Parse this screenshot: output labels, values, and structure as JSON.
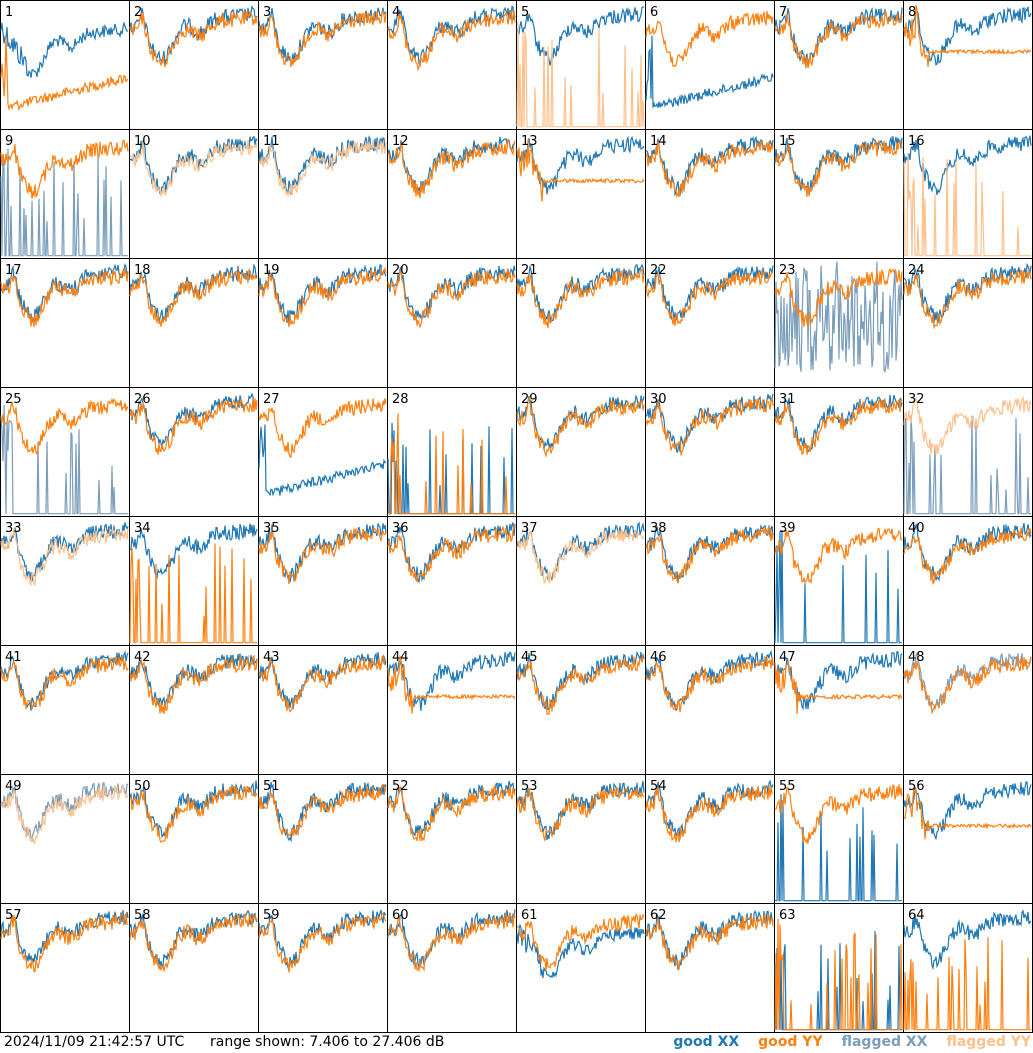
{
  "chart_data": {
    "type": "line",
    "grid": "8x8 small multiples",
    "range": [
      7.406,
      27.406
    ],
    "panels": [
      {
        "label": "1",
        "xx": "good",
        "yy": "good",
        "xxShape": "d",
        "yyShape": "x"
      },
      {
        "label": "2",
        "xx": "good",
        "yy": "good",
        "xxShape": "v",
        "yyShape": "v"
      },
      {
        "label": "3",
        "xx": "good",
        "yy": "good",
        "xxShape": "v",
        "yyShape": "v"
      },
      {
        "label": "4",
        "xx": "good",
        "yy": "good",
        "xxShape": "v",
        "yyShape": "v"
      },
      {
        "label": "5",
        "xx": "good",
        "yy": "flagged",
        "xxShape": "v",
        "yyShape": "s"
      },
      {
        "label": "6",
        "xx": "good",
        "yy": "good",
        "xxShape": "x",
        "yyShape": "v"
      },
      {
        "label": "7",
        "xx": "good",
        "yy": "good",
        "xxShape": "v",
        "yyShape": "v"
      },
      {
        "label": "8",
        "xx": "good",
        "yy": "good",
        "xxShape": "v",
        "yyShape": "f"
      },
      {
        "label": "9",
        "xx": "flagged",
        "yy": "good",
        "xxShape": "s",
        "yyShape": "v"
      },
      {
        "label": "10",
        "xx": "good",
        "yy": "flagged",
        "xxShape": "v",
        "yyShape": "v"
      },
      {
        "label": "11",
        "xx": "good",
        "yy": "flagged",
        "xxShape": "v",
        "yyShape": "v"
      },
      {
        "label": "12",
        "xx": "good",
        "yy": "good",
        "xxShape": "v",
        "yyShape": "v"
      },
      {
        "label": "13",
        "xx": "good",
        "yy": "good",
        "xxShape": "v",
        "yyShape": "f"
      },
      {
        "label": "14",
        "xx": "good",
        "yy": "good",
        "xxShape": "v",
        "yyShape": "v"
      },
      {
        "label": "15",
        "xx": "good",
        "yy": "good",
        "xxShape": "v",
        "yyShape": "v"
      },
      {
        "label": "16",
        "xx": "good",
        "yy": "flagged",
        "xxShape": "v",
        "yyShape": "s"
      },
      {
        "label": "17",
        "xx": "good",
        "yy": "good",
        "xxShape": "v",
        "yyShape": "v"
      },
      {
        "label": "18",
        "xx": "good",
        "yy": "good",
        "xxShape": "v",
        "yyShape": "v"
      },
      {
        "label": "19",
        "xx": "good",
        "yy": "good",
        "xxShape": "v",
        "yyShape": "v"
      },
      {
        "label": "20",
        "xx": "good",
        "yy": "good",
        "xxShape": "v",
        "yyShape": "v"
      },
      {
        "label": "21",
        "xx": "good",
        "yy": "good",
        "xxShape": "v",
        "yyShape": "v"
      },
      {
        "label": "22",
        "xx": "good",
        "yy": "good",
        "xxShape": "v",
        "yyShape": "v"
      },
      {
        "label": "23",
        "xx": "flagged",
        "yy": "good",
        "xxShape": "n",
        "yyShape": "v"
      },
      {
        "label": "24",
        "xx": "good",
        "yy": "good",
        "xxShape": "v",
        "yyShape": "v"
      },
      {
        "label": "25",
        "xx": "flagged",
        "yy": "good",
        "xxShape": "s",
        "yyShape": "v"
      },
      {
        "label": "26",
        "xx": "good",
        "yy": "good",
        "xxShape": "v",
        "yyShape": "v"
      },
      {
        "label": "27",
        "xx": "good",
        "yy": "good",
        "xxShape": "x",
        "yyShape": "v"
      },
      {
        "label": "28",
        "xx": "good",
        "yy": "good",
        "xxShape": "s",
        "yyShape": "s"
      },
      {
        "label": "29",
        "xx": "good",
        "yy": "good",
        "xxShape": "v",
        "yyShape": "v"
      },
      {
        "label": "30",
        "xx": "good",
        "yy": "good",
        "xxShape": "v",
        "yyShape": "v"
      },
      {
        "label": "31",
        "xx": "good",
        "yy": "good",
        "xxShape": "v",
        "yyShape": "v"
      },
      {
        "label": "32",
        "xx": "flagged",
        "yy": "flagged",
        "xxShape": "s",
        "yyShape": "v"
      },
      {
        "label": "33",
        "xx": "good",
        "yy": "flagged",
        "xxShape": "v",
        "yyShape": "v"
      },
      {
        "label": "34",
        "xx": "good",
        "yy": "good",
        "xxShape": "v",
        "yyShape": "s"
      },
      {
        "label": "35",
        "xx": "good",
        "yy": "good",
        "xxShape": "v",
        "yyShape": "v"
      },
      {
        "label": "36",
        "xx": "good",
        "yy": "good",
        "xxShape": "v",
        "yyShape": "v"
      },
      {
        "label": "37",
        "xx": "good",
        "yy": "flagged",
        "xxShape": "v",
        "yyShape": "v"
      },
      {
        "label": "38",
        "xx": "good",
        "yy": "good",
        "xxShape": "v",
        "yyShape": "v"
      },
      {
        "label": "39",
        "xx": "good",
        "yy": "good",
        "xxShape": "s",
        "yyShape": "v"
      },
      {
        "label": "40",
        "xx": "good",
        "yy": "good",
        "xxShape": "v",
        "yyShape": "v"
      },
      {
        "label": "41",
        "xx": "good",
        "yy": "good",
        "xxShape": "v",
        "yyShape": "v"
      },
      {
        "label": "42",
        "xx": "good",
        "yy": "good",
        "xxShape": "v",
        "yyShape": "v"
      },
      {
        "label": "43",
        "xx": "good",
        "yy": "good",
        "xxShape": "v",
        "yyShape": "v"
      },
      {
        "label": "44",
        "xx": "good",
        "yy": "good",
        "xxShape": "v",
        "yyShape": "f"
      },
      {
        "label": "45",
        "xx": "good",
        "yy": "good",
        "xxShape": "v",
        "yyShape": "v"
      },
      {
        "label": "46",
        "xx": "good",
        "yy": "good",
        "xxShape": "v",
        "yyShape": "v"
      },
      {
        "label": "47",
        "xx": "good",
        "yy": "good",
        "xxShape": "v",
        "yyShape": "f"
      },
      {
        "label": "48",
        "xx": "flagged",
        "yy": "good",
        "xxShape": "v",
        "yyShape": "v"
      },
      {
        "label": "49",
        "xx": "flagged",
        "yy": "flagged",
        "xxShape": "v",
        "yyShape": "v"
      },
      {
        "label": "50",
        "xx": "good",
        "yy": "good",
        "xxShape": "v",
        "yyShape": "v"
      },
      {
        "label": "51",
        "xx": "good",
        "yy": "good",
        "xxShape": "v",
        "yyShape": "v"
      },
      {
        "label": "52",
        "xx": "good",
        "yy": "good",
        "xxShape": "v",
        "yyShape": "v"
      },
      {
        "label": "53",
        "xx": "good",
        "yy": "good",
        "xxShape": "v",
        "yyShape": "v"
      },
      {
        "label": "54",
        "xx": "good",
        "yy": "good",
        "xxShape": "v",
        "yyShape": "v"
      },
      {
        "label": "55",
        "xx": "good",
        "yy": "good",
        "xxShape": "s",
        "yyShape": "v"
      },
      {
        "label": "56",
        "xx": "good",
        "yy": "good",
        "xxShape": "v",
        "yyShape": "f"
      },
      {
        "label": "57",
        "xx": "good",
        "yy": "good",
        "xxShape": "v",
        "yyShape": "v"
      },
      {
        "label": "58",
        "xx": "good",
        "yy": "good",
        "xxShape": "v",
        "yyShape": "v"
      },
      {
        "label": "59",
        "xx": "good",
        "yy": "good",
        "xxShape": "v",
        "yyShape": "v"
      },
      {
        "label": "60",
        "xx": "good",
        "yy": "good",
        "xxShape": "v",
        "yyShape": "v"
      },
      {
        "label": "61",
        "xx": "good",
        "yy": "good",
        "xxShape": "d",
        "yyShape": "v"
      },
      {
        "label": "62",
        "xx": "good",
        "yy": "good",
        "xxShape": "v",
        "yyShape": "v"
      },
      {
        "label": "63",
        "xx": "good",
        "yy": "good",
        "xxShape": "s",
        "yyShape": "s"
      },
      {
        "label": "64",
        "xx": "good",
        "yy": "good",
        "xxShape": "v",
        "yyShape": "s"
      }
    ]
  },
  "colors": {
    "good_xx": "#1f77b4",
    "good_yy": "#ff7f0e",
    "flagged_xx": "#7a9dbb",
    "flagged_yy": "#ffc08c"
  },
  "footer": {
    "timestamp": "2024/11/09 21:42:57 UTC",
    "range": "range shown: 7.406 to 27.406 dB",
    "legend": {
      "good_xx": "good XX",
      "good_yy": "good YY",
      "flagged_xx": "flagged XX",
      "flagged_yy": "flagged YY"
    }
  }
}
